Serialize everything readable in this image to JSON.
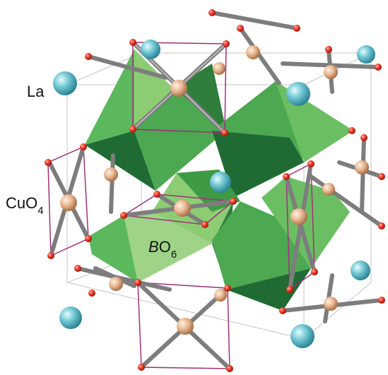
{
  "labels": {
    "la": "La",
    "cuo4": {
      "text": "CuO",
      "subscript": "4"
    },
    "bo6": {
      "italic": "B",
      "text": "O",
      "subscript": "6"
    }
  }
}
